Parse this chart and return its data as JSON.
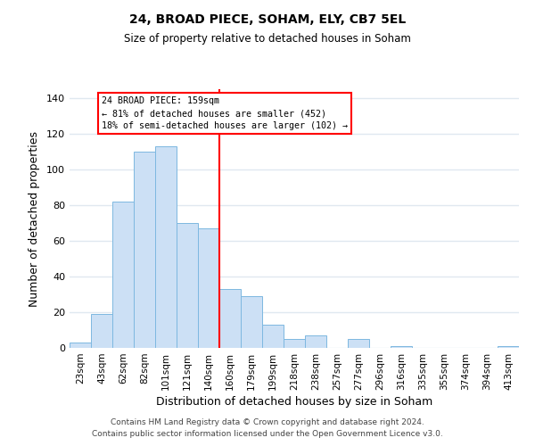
{
  "title": "24, BROAD PIECE, SOHAM, ELY, CB7 5EL",
  "subtitle": "Size of property relative to detached houses in Soham",
  "xlabel": "Distribution of detached houses by size in Soham",
  "ylabel": "Number of detached properties",
  "categories": [
    "23sqm",
    "43sqm",
    "62sqm",
    "82sqm",
    "101sqm",
    "121sqm",
    "140sqm",
    "160sqm",
    "179sqm",
    "199sqm",
    "218sqm",
    "238sqm",
    "257sqm",
    "277sqm",
    "296sqm",
    "316sqm",
    "335sqm",
    "355sqm",
    "374sqm",
    "394sqm",
    "413sqm"
  ],
  "values": [
    3,
    19,
    82,
    110,
    113,
    70,
    67,
    33,
    29,
    13,
    5,
    7,
    0,
    5,
    0,
    1,
    0,
    0,
    0,
    0,
    1
  ],
  "bar_color": "#cce0f5",
  "bar_edge_color": "#7db8e0",
  "ylim": [
    0,
    145
  ],
  "yticks": [
    0,
    20,
    40,
    60,
    80,
    100,
    120,
    140
  ],
  "vline_index": 7,
  "annotation_text_line1": "24 BROAD PIECE: 159sqm",
  "annotation_text_line2": "← 81% of detached houses are smaller (452)",
  "annotation_text_line3": "18% of semi-detached houses are larger (102) →",
  "footer_line1": "Contains HM Land Registry data © Crown copyright and database right 2024.",
  "footer_line2": "Contains public sector information licensed under the Open Government Licence v3.0.",
  "background_color": "#ffffff",
  "grid_color": "#e0e8f0"
}
